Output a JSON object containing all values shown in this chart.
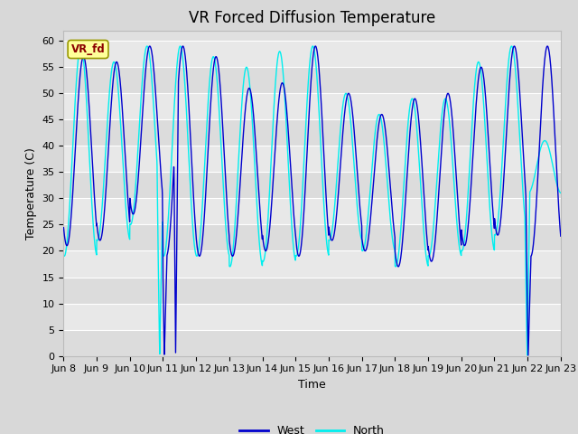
{
  "title": "VR Forced Diffusion Temperature",
  "xlabel": "Time",
  "ylabel": "Temperature (C)",
  "ylim": [
    0,
    62
  ],
  "yticks": [
    0,
    5,
    10,
    15,
    20,
    25,
    30,
    35,
    40,
    45,
    50,
    55,
    60
  ],
  "west_color": "#0000CD",
  "north_color": "#00EFEF",
  "fig_bg_color": "#D8D8D8",
  "plot_bg_color": "#E0E0E0",
  "annotation_text": "VR_fd",
  "annotation_bg": "#FFFF99",
  "annotation_border": "#999900",
  "annotation_text_color": "#8B0000",
  "legend_west": "West",
  "legend_north": "North",
  "title_fontsize": 12,
  "label_fontsize": 9,
  "tick_fontsize": 8
}
